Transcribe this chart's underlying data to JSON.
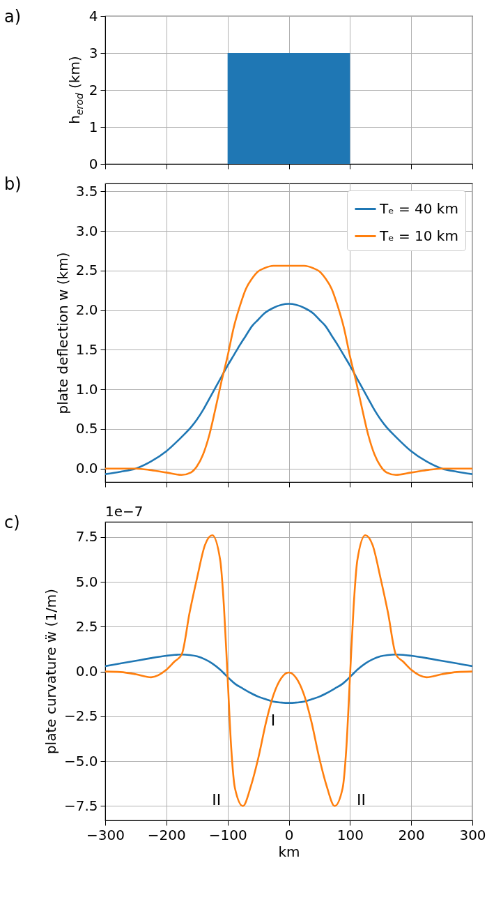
{
  "chart_data": [
    {
      "type": "area",
      "title": "a)",
      "ylabel": "h$_{erod}$ (km)",
      "x": [
        -300,
        -100,
        -100,
        100,
        100,
        300
      ],
      "series": [
        {
          "color": "#1f77b4",
          "values": [
            0,
            0,
            3,
            3,
            0,
            0
          ]
        }
      ],
      "xlim": [
        -300,
        300
      ],
      "xticks": [
        -300,
        -200,
        -100,
        0,
        100,
        200,
        300
      ],
      "ylim": [
        0,
        4
      ],
      "yticks": [
        0,
        1,
        2,
        3,
        4
      ],
      "grid": true,
      "tick_labels": "y"
    },
    {
      "type": "line",
      "title": "b)",
      "ylabel": "plate deflection w (km)",
      "x": [
        -300,
        -275,
        -250,
        -225,
        -200,
        -175,
        -160,
        -150,
        -140,
        -130,
        -120,
        -110,
        -100,
        -90,
        -80,
        -70,
        -60,
        -50,
        -40,
        -25,
        0,
        25,
        40,
        50,
        60,
        70,
        80,
        90,
        100,
        110,
        120,
        130,
        140,
        150,
        160,
        175,
        200,
        225,
        250,
        275,
        300
      ],
      "series": [
        {
          "name": "Tₑ = 40 km",
          "color": "#1f77b4",
          "values": [
            -0.07,
            -0.04,
            0,
            0.09,
            0.22,
            0.4,
            0.52,
            0.62,
            0.74,
            0.88,
            1.02,
            1.16,
            1.3,
            1.43,
            1.56,
            1.68,
            1.8,
            1.88,
            1.96,
            2.03,
            2.08,
            2.03,
            1.96,
            1.88,
            1.8,
            1.68,
            1.56,
            1.43,
            1.3,
            1.16,
            1.02,
            0.88,
            0.74,
            0.62,
            0.52,
            0.4,
            0.22,
            0.09,
            0,
            -0.04,
            -0.07
          ]
        },
        {
          "name": "Tₑ = 10 km",
          "color": "#ff7f0e",
          "values": [
            0,
            0,
            0,
            -0.02,
            -0.05,
            -0.08,
            -0.05,
            0.03,
            0.18,
            0.42,
            0.75,
            1.1,
            1.42,
            1.78,
            2.05,
            2.27,
            2.4,
            2.49,
            2.53,
            2.56,
            2.56,
            2.56,
            2.53,
            2.49,
            2.4,
            2.27,
            2.05,
            1.78,
            1.42,
            1.1,
            0.75,
            0.42,
            0.18,
            0.03,
            -0.05,
            -0.08,
            -0.05,
            -0.02,
            0,
            0,
            0
          ]
        }
      ],
      "xlim": [
        -300,
        300
      ],
      "xticks": [
        -300,
        -200,
        -100,
        0,
        100,
        200,
        300
      ],
      "ylim": [
        -0.17,
        3.6
      ],
      "yticks": [
        {
          "value": 0,
          "label": "0.0"
        },
        0.5,
        {
          "value": 1,
          "label": "1.0"
        },
        1.5,
        {
          "value": 2,
          "label": "2.0"
        },
        2.5,
        {
          "value": 3,
          "label": "3.0"
        },
        3.5
      ],
      "grid": true,
      "legend": "top right",
      "tick_labels": "y"
    },
    {
      "type": "line",
      "title": "c)",
      "ylabel": "plate curvature ẅ (1/m)",
      "xlabel": "km",
      "annotations": [
        "1e−7",
        {
          "text": "I",
          "x": -12,
          "y": -1.73
        },
        {
          "text": "II",
          "x": -75,
          "y": -7.5
        },
        {
          "text": "II",
          "x": 75,
          "y": -7.5
        }
      ],
      "x": [
        -300,
        -275,
        -250,
        -225,
        -200,
        -187,
        -175,
        -162,
        -150,
        -137,
        -125,
        -112,
        -106,
        -100,
        -94,
        -88,
        -75,
        -62,
        -50,
        -37,
        -25,
        -12,
        0,
        12,
        25,
        37,
        50,
        62,
        75,
        88,
        94,
        100,
        106,
        112,
        125,
        137,
        150,
        162,
        175,
        187,
        200,
        225,
        250,
        275,
        300
      ],
      "series": [
        {
          "color": "#1f77b4",
          "values": [
            0.3,
            0.45,
            0.6,
            0.75,
            0.88,
            0.93,
            0.95,
            0.92,
            0.85,
            0.68,
            0.45,
            0.1,
            -0.1,
            -0.3,
            -0.5,
            -0.68,
            -0.95,
            -1.2,
            -1.4,
            -1.55,
            -1.68,
            -1.73,
            -1.75,
            -1.73,
            -1.68,
            -1.55,
            -1.4,
            -1.2,
            -0.95,
            -0.68,
            -0.5,
            -0.3,
            -0.1,
            0.1,
            0.45,
            0.68,
            0.85,
            0.92,
            0.95,
            0.93,
            0.88,
            0.75,
            0.6,
            0.45,
            0.3
          ]
        },
        {
          "color": "#ff7f0e",
          "values": [
            0,
            -0.03,
            -0.15,
            -0.32,
            0.1,
            0.55,
            0.95,
            3.3,
            5.2,
            7.05,
            7.6,
            6.2,
            3.65,
            -0.3,
            -4.3,
            -6.5,
            -7.5,
            -6.4,
            -4.85,
            -2.8,
            -1.3,
            -0.35,
            -0.05,
            -0.35,
            -1.3,
            -2.8,
            -4.85,
            -6.4,
            -7.5,
            -6.5,
            -4.3,
            -0.3,
            3.65,
            6.2,
            7.6,
            7.05,
            5.2,
            3.3,
            0.95,
            0.55,
            0.1,
            -0.32,
            -0.15,
            -0.03,
            0
          ]
        }
      ],
      "xlim": [
        -300,
        300
      ],
      "xticks": [
        {
          "value": -300,
          "label": "−300"
        },
        {
          "value": -200,
          "label": "−200"
        },
        {
          "value": -100,
          "label": "−100"
        },
        0,
        100,
        200,
        300
      ],
      "ylim": [
        -8.3,
        8.35
      ],
      "yticks": [
        {
          "value": -7.5,
          "label": "−7.5"
        },
        {
          "value": -5,
          "label": "−5.0"
        },
        {
          "value": -2.5,
          "label": "−2.5"
        },
        {
          "value": 0,
          "label": "0.0"
        },
        2.5,
        {
          "value": 5,
          "label": "5.0"
        },
        7.5
      ],
      "grid": true
    }
  ]
}
